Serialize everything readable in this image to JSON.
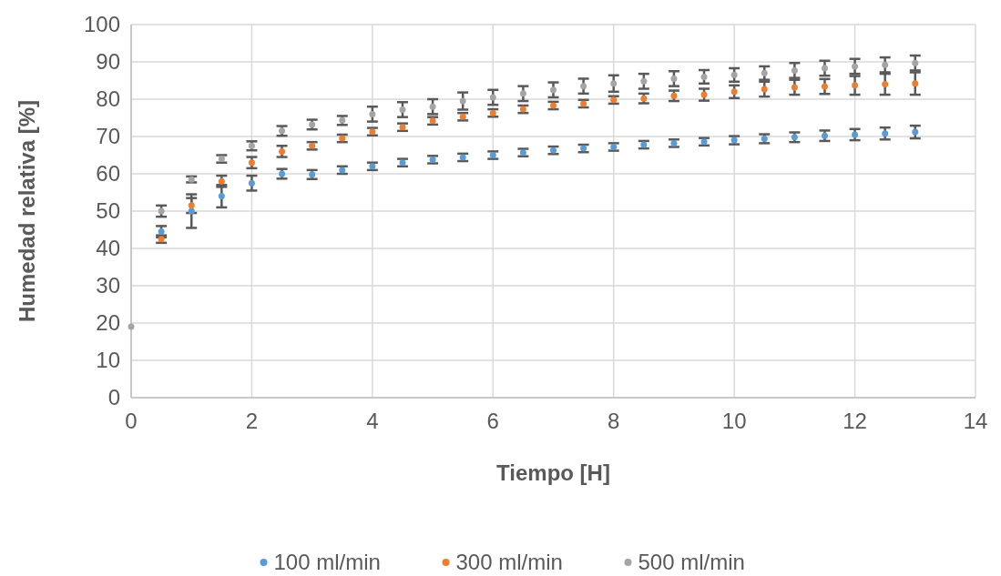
{
  "chart_data": {
    "type": "scatter",
    "xlabel": "Tiempo [H]",
    "ylabel": "Humedad relativa [%]",
    "xlim": [
      0,
      14
    ],
    "xticks": [
      0,
      2,
      4,
      6,
      8,
      10,
      12,
      14
    ],
    "ylim": [
      0,
      100
    ],
    "yticks": [
      0,
      10,
      20,
      30,
      40,
      50,
      60,
      70,
      80,
      90,
      100
    ],
    "grid": true,
    "legend": "bottom",
    "marker": "circle",
    "x": [
      0,
      0.5,
      1,
      1.5,
      2,
      2.5,
      3,
      3.5,
      4,
      4.5,
      5,
      5.5,
      6,
      6.5,
      7,
      7.5,
      8,
      8.5,
      9,
      9.5,
      10,
      10.5,
      11,
      11.5,
      12,
      12.5,
      13
    ],
    "series": [
      {
        "name": "100 ml/min",
        "color": "#5b9bd5",
        "values": [
          null,
          44.5,
          50,
          54,
          57.5,
          60,
          59.8,
          61,
          62,
          63,
          63.8,
          64.4,
          65,
          65.7,
          66.3,
          66.8,
          67.2,
          67.8,
          68.2,
          68.6,
          69,
          69.4,
          69.8,
          70.2,
          70.5,
          70.8,
          71.2
        ],
        "errors": [
          null,
          1.5,
          4.5,
          3,
          2,
          1.3,
          1.2,
          1,
          1,
          1,
          1,
          1,
          1,
          1,
          1,
          1,
          1,
          1,
          1,
          1,
          1.1,
          1.2,
          1.3,
          1.4,
          1.5,
          1.6,
          1.7
        ]
      },
      {
        "name": "300 ml/min",
        "color": "#ed7d31",
        "values": [
          null,
          42.5,
          51.5,
          58,
          63,
          66,
          67.5,
          69.5,
          71.3,
          72.5,
          74.2,
          75.3,
          76.3,
          77.3,
          78.3,
          78.8,
          79.8,
          80.2,
          80.9,
          81.2,
          82,
          82.7,
          83.2,
          83.4,
          83.7,
          84,
          84.2
        ],
        "errors": [
          null,
          1,
          2,
          1.5,
          1.5,
          1.5,
          1,
          1,
          1,
          1,
          1,
          1,
          1,
          1,
          1,
          1,
          1,
          1.3,
          1.4,
          1.6,
          1.7,
          2,
          2,
          2,
          2.5,
          2.8,
          3
        ]
      },
      {
        "name": "500 ml/min",
        "color": "#a5a5a5",
        "values": [
          19,
          50,
          58.5,
          64,
          67.5,
          71.5,
          73.2,
          74.3,
          76,
          77.2,
          78,
          79.5,
          80.5,
          81.5,
          82.5,
          83.5,
          84.2,
          84.8,
          85.5,
          86,
          86.5,
          87,
          87.7,
          88.3,
          88.8,
          89.2,
          89.7
        ],
        "errors": [
          null,
          1.5,
          0.8,
          1,
          1.2,
          1.3,
          1.3,
          1.2,
          2,
          2,
          2,
          2.3,
          2,
          2,
          2,
          2,
          2.2,
          2,
          2,
          1.8,
          1.8,
          1.8,
          2,
          2,
          2,
          2,
          2
        ]
      }
    ]
  }
}
